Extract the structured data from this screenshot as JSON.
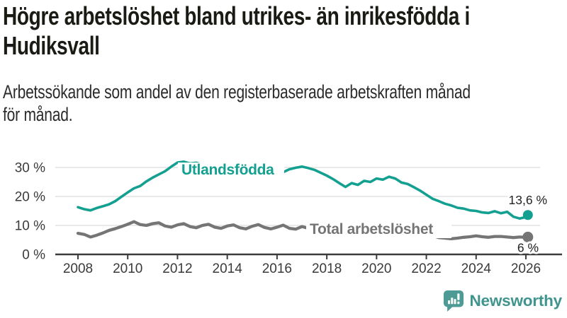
{
  "header": {
    "title": "Högre arbetslöshet bland utrikes- än inrikesfödda i\nHudiksvall",
    "subtitle": "Arbetssökande som andel av den registerbaserade arbetskraften månad\nför månad."
  },
  "chart_data": {
    "type": "line",
    "title": "Högre arbetslöshet bland utrikes- än inrikesfödda i Hudiksvall",
    "xlabel": "",
    "ylabel": "",
    "y_tick_format": "{v} %",
    "x_ticks": [
      2008,
      2010,
      2012,
      2014,
      2016,
      2018,
      2020,
      2022,
      2024,
      2026
    ],
    "y_ticks": [
      0,
      10,
      20,
      30
    ],
    "xlim": [
      2007.1,
      2027.5
    ],
    "ylim": [
      0,
      33
    ],
    "grid": "horizontal",
    "legend": "inline-labels",
    "colors": {
      "grid": "#dcdcdc",
      "axis": "#3c3c3c",
      "tick_text": "#3a3a3a",
      "value_text": "#222222"
    },
    "series": [
      {
        "name": "Utlandsfödda",
        "color": "#14A091",
        "end_label": "13,6 %",
        "end_value": 13.6,
        "points": [
          [
            2008.0,
            16.3
          ],
          [
            2008.25,
            15.6
          ],
          [
            2008.5,
            15.2
          ],
          [
            2008.75,
            16.0
          ],
          [
            2009.0,
            16.6
          ],
          [
            2009.25,
            17.3
          ],
          [
            2009.5,
            18.4
          ],
          [
            2009.75,
            19.9
          ],
          [
            2010.0,
            21.4
          ],
          [
            2010.25,
            22.8
          ],
          [
            2010.5,
            23.6
          ],
          [
            2010.75,
            25.2
          ],
          [
            2011.0,
            26.5
          ],
          [
            2011.25,
            27.6
          ],
          [
            2011.5,
            28.7
          ],
          [
            2011.75,
            30.3
          ],
          [
            2012.0,
            31.7
          ],
          [
            2012.25,
            32.0
          ],
          [
            2012.5,
            31.4
          ],
          [
            2012.75,
            31.6
          ],
          [
            2013.0,
            31.0
          ],
          [
            2013.25,
            30.6
          ],
          [
            2013.5,
            30.2
          ],
          [
            2013.75,
            30.5
          ],
          [
            2014.0,
            30.0
          ],
          [
            2014.25,
            29.6
          ],
          [
            2014.5,
            29.9
          ],
          [
            2014.75,
            29.5
          ],
          [
            2015.0,
            30.1
          ],
          [
            2015.25,
            29.6
          ],
          [
            2015.5,
            28.9
          ],
          [
            2015.75,
            28.2
          ],
          [
            2016.0,
            27.6
          ],
          [
            2016.25,
            28.4
          ],
          [
            2016.5,
            29.4
          ],
          [
            2016.75,
            29.9
          ],
          [
            2017.0,
            30.3
          ],
          [
            2017.25,
            29.8
          ],
          [
            2017.5,
            29.2
          ],
          [
            2017.75,
            28.2
          ],
          [
            2018.0,
            27.2
          ],
          [
            2018.25,
            26.0
          ],
          [
            2018.5,
            24.6
          ],
          [
            2018.75,
            23.3
          ],
          [
            2019.0,
            24.6
          ],
          [
            2019.25,
            24.0
          ],
          [
            2019.5,
            25.4
          ],
          [
            2019.75,
            25.0
          ],
          [
            2020.0,
            26.2
          ],
          [
            2020.25,
            25.8
          ],
          [
            2020.5,
            26.8
          ],
          [
            2020.75,
            26.2
          ],
          [
            2021.0,
            24.8
          ],
          [
            2021.25,
            24.3
          ],
          [
            2021.5,
            23.2
          ],
          [
            2021.75,
            22.0
          ],
          [
            2022.0,
            20.6
          ],
          [
            2022.25,
            19.2
          ],
          [
            2022.5,
            18.4
          ],
          [
            2022.75,
            17.5
          ],
          [
            2023.0,
            16.9
          ],
          [
            2023.25,
            16.1
          ],
          [
            2023.5,
            15.8
          ],
          [
            2023.75,
            15.2
          ],
          [
            2024.0,
            15.0
          ],
          [
            2024.25,
            14.5
          ],
          [
            2024.5,
            14.3
          ],
          [
            2024.75,
            14.9
          ],
          [
            2025.0,
            14.2
          ],
          [
            2025.25,
            14.7
          ],
          [
            2025.5,
            13.0
          ],
          [
            2025.75,
            12.4
          ],
          [
            2026.0,
            12.9
          ],
          [
            2026.08,
            13.6
          ]
        ]
      },
      {
        "name": "Total arbetslöshet",
        "color": "#757575",
        "end_label": "6 %",
        "end_value": 6.0,
        "points": [
          [
            2008.0,
            7.3
          ],
          [
            2008.25,
            6.9
          ],
          [
            2008.5,
            6.0
          ],
          [
            2008.75,
            6.6
          ],
          [
            2009.0,
            7.4
          ],
          [
            2009.25,
            8.3
          ],
          [
            2009.5,
            8.9
          ],
          [
            2009.75,
            9.6
          ],
          [
            2010.0,
            10.4
          ],
          [
            2010.25,
            11.3
          ],
          [
            2010.5,
            10.3
          ],
          [
            2010.75,
            10.0
          ],
          [
            2011.0,
            10.6
          ],
          [
            2011.25,
            10.9
          ],
          [
            2011.5,
            9.8
          ],
          [
            2011.75,
            9.4
          ],
          [
            2012.0,
            10.2
          ],
          [
            2012.25,
            10.6
          ],
          [
            2012.5,
            9.6
          ],
          [
            2012.75,
            9.2
          ],
          [
            2013.0,
            10.0
          ],
          [
            2013.25,
            10.4
          ],
          [
            2013.5,
            9.4
          ],
          [
            2013.75,
            9.0
          ],
          [
            2014.0,
            9.8
          ],
          [
            2014.25,
            10.2
          ],
          [
            2014.5,
            9.2
          ],
          [
            2014.75,
            8.8
          ],
          [
            2015.0,
            9.7
          ],
          [
            2015.25,
            10.3
          ],
          [
            2015.5,
            9.3
          ],
          [
            2015.75,
            8.8
          ],
          [
            2016.0,
            9.4
          ],
          [
            2016.25,
            10.1
          ],
          [
            2016.5,
            9.0
          ],
          [
            2016.75,
            8.7
          ],
          [
            2017.0,
            9.6
          ],
          [
            2017.25,
            9.0
          ],
          [
            2017.5,
            8.4
          ],
          [
            2017.75,
            8.1
          ],
          [
            2018.0,
            8.6
          ],
          [
            2018.25,
            8.8
          ],
          [
            2018.5,
            7.9
          ],
          [
            2018.75,
            7.6
          ],
          [
            2019.0,
            8.0
          ],
          [
            2019.25,
            8.2
          ],
          [
            2019.5,
            7.3
          ],
          [
            2019.75,
            7.0
          ],
          [
            2020.0,
            7.4
          ],
          [
            2020.25,
            8.0
          ],
          [
            2020.5,
            7.6
          ],
          [
            2020.75,
            7.2
          ],
          [
            2021.0,
            7.5
          ],
          [
            2021.25,
            7.2
          ],
          [
            2021.5,
            6.8
          ],
          [
            2021.75,
            6.5
          ],
          [
            2022.0,
            6.8
          ],
          [
            2022.25,
            6.5
          ],
          [
            2022.5,
            5.8
          ],
          [
            2022.75,
            5.6
          ],
          [
            2023.0,
            5.4
          ],
          [
            2023.25,
            5.6
          ],
          [
            2023.5,
            5.9
          ],
          [
            2023.75,
            6.1
          ],
          [
            2024.0,
            6.4
          ],
          [
            2024.25,
            6.1
          ],
          [
            2024.5,
            5.9
          ],
          [
            2024.75,
            6.2
          ],
          [
            2025.0,
            6.2
          ],
          [
            2025.25,
            6.0
          ],
          [
            2025.5,
            5.8
          ],
          [
            2025.75,
            6.0
          ],
          [
            2026.0,
            5.9
          ],
          [
            2026.08,
            6.0
          ]
        ]
      }
    ]
  },
  "footer": {
    "brand": "Newsworthy",
    "brand_color": "#3F948E",
    "logo_icon": "newsworthy-chart-bubble-icon"
  }
}
